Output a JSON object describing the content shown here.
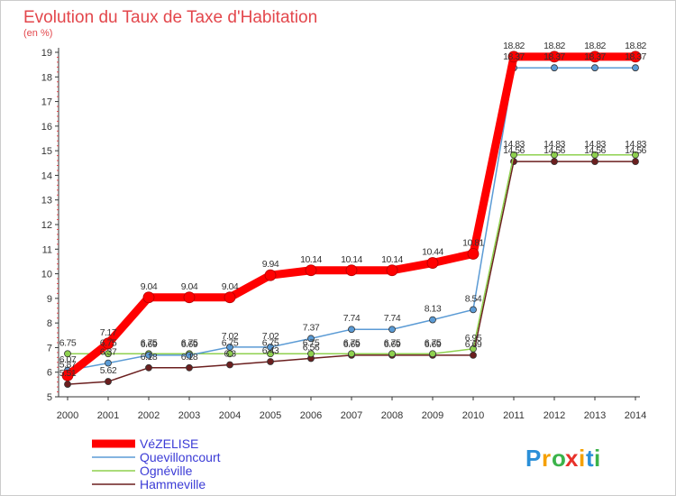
{
  "chart_data": {
    "type": "line",
    "title": "Evolution du Taux de Taxe d'Habitation",
    "subtitle": "(en %)",
    "x": [
      "2000",
      "2001",
      "2002",
      "2003",
      "2004",
      "2005",
      "2006",
      "2007",
      "2008",
      "2009",
      "2010",
      "2011",
      "2012",
      "2013",
      "2014"
    ],
    "ylim": [
      5,
      19
    ],
    "yticks": [
      5,
      6,
      7,
      8,
      9,
      10,
      11,
      12,
      13,
      14,
      15,
      16,
      17,
      18,
      19
    ],
    "grid": false,
    "legend_position": "bottom-left",
    "series": [
      {
        "name": "VéZELISE",
        "color": "#ff0000",
        "values": [
          5.87,
          7.17,
          9.04,
          9.04,
          9.04,
          9.94,
          10.14,
          10.14,
          10.14,
          10.44,
          10.81,
          18.82,
          18.82,
          18.82,
          18.82
        ],
        "labels": [
          "5.87",
          "7.17",
          "9.04",
          "9.04",
          "9.04",
          "9.94",
          "10.14",
          "10.14",
          "10.14",
          "10.44",
          "10.81",
          "18.82",
          "18.82",
          "18.82",
          "18.82"
        ]
      },
      {
        "name": "Quevilloncourt",
        "color": "#5b9bd5",
        "values": [
          6.07,
          6.37,
          6.69,
          6.69,
          7.02,
          7.02,
          7.37,
          7.74,
          7.74,
          8.13,
          8.54,
          18.37,
          18.37,
          18.37,
          18.37
        ],
        "labels": [
          "6.07",
          "6.37",
          "6.69",
          "6.69",
          "7.02",
          "7.02",
          "7.37",
          "7.74",
          "7.74",
          "8.13",
          "8.54",
          "18.37",
          "18.37",
          "18.37",
          "18.37"
        ]
      },
      {
        "name": "Ognéville",
        "color": "#8fd14f",
        "values": [
          6.75,
          6.75,
          6.75,
          6.75,
          6.75,
          6.75,
          6.75,
          6.75,
          6.75,
          6.75,
          6.95,
          14.83,
          14.83,
          14.83,
          14.83
        ],
        "labels": [
          "6.75",
          "6.75",
          "6.75",
          "6.75",
          "6.75",
          "6.75",
          "6.75",
          "6.75",
          "6.75",
          "6.75",
          "6.95",
          "14.83",
          "14.83",
          "14.83",
          "14.83"
        ]
      },
      {
        "name": "Hammeville",
        "color": "#6b1f1f",
        "values": [
          5.51,
          5.62,
          6.18,
          6.18,
          6.3,
          6.43,
          6.56,
          6.69,
          6.69,
          6.69,
          6.69,
          14.56,
          14.56,
          14.56,
          14.56
        ],
        "labels": [
          "5.51",
          "5.62",
          "6.18",
          "6.18",
          "6.3",
          "6.43",
          "6.56",
          "6.69",
          "6.69",
          "6.69",
          "6.69",
          "14.56",
          "14.56",
          "14.56",
          "14.56"
        ]
      }
    ]
  },
  "branding": {
    "logo_text": "Proxiti",
    "letters": [
      "P",
      "r",
      "o",
      "x",
      "i",
      "t",
      "i"
    ],
    "letter_colors": [
      "#2a8fd8",
      "#f5a000",
      "#3bb34a",
      "#e8312a",
      "#f5a000",
      "#2a8fd8",
      "#3bb34a"
    ]
  }
}
